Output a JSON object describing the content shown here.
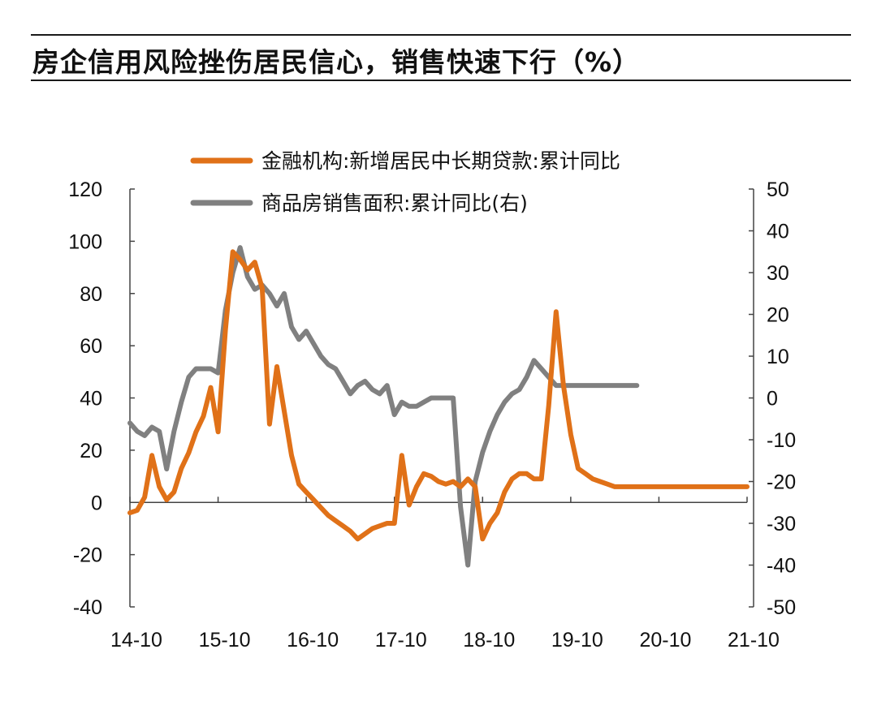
{
  "page": {
    "title": "房企信用风险挫伤居民信心，销售快速下行（%）"
  },
  "colors": {
    "orange": "#E07118",
    "gray": "#808080",
    "axis": "#444444"
  },
  "chart_data": {
    "type": "line",
    "title": "房企信用风险挫伤居民信心，销售快速下行（%）",
    "legend_position": "top-center",
    "x_ticks": [
      "14-10",
      "15-10",
      "16-10",
      "17-10",
      "18-10",
      "19-10",
      "20-10",
      "21-10"
    ],
    "x_range": [
      0,
      84
    ],
    "y_left": {
      "ticks": [
        120,
        100,
        80,
        60,
        40,
        20,
        0,
        -20,
        -40
      ],
      "range": [
        -40,
        120
      ]
    },
    "y_right": {
      "ticks": [
        50,
        40,
        30,
        20,
        10,
        0,
        -10,
        -20,
        -30,
        -40,
        -50
      ],
      "range": [
        -50,
        50
      ]
    },
    "series": [
      {
        "name": "金融机构:新增居民中长期贷款:累计同比",
        "axis": "left",
        "color": "#E07118",
        "x": [
          0,
          1,
          2,
          3,
          4,
          5,
          6,
          7,
          8,
          9,
          10,
          11,
          12,
          13,
          14,
          15,
          16,
          17,
          18,
          19,
          20,
          21,
          22,
          23,
          24,
          25,
          26,
          27,
          28,
          29,
          30,
          31,
          32,
          33,
          34,
          35,
          36,
          37,
          38,
          39,
          40,
          41,
          42,
          43,
          44,
          45,
          46,
          47,
          48,
          49,
          50,
          51,
          52,
          53,
          54,
          55,
          56,
          57,
          58,
          59,
          60,
          61,
          62,
          63,
          64,
          65,
          66,
          67,
          68,
          69,
          70,
          71,
          72,
          73,
          74,
          75,
          76,
          77,
          78,
          79,
          80,
          81,
          82,
          83,
          84
        ],
        "values": [
          -4,
          -3,
          2,
          18,
          6,
          1,
          4,
          13,
          19,
          27,
          33,
          44,
          27,
          66,
          96,
          93,
          89,
          92,
          82,
          30,
          52,
          35,
          18,
          7,
          4,
          1,
          -2,
          -5,
          -7,
          -9,
          -11,
          -14,
          -12,
          -10,
          -9,
          -8,
          -8,
          18,
          -1,
          6,
          11,
          10,
          8,
          7,
          8,
          6,
          9,
          6,
          -14,
          -8,
          -4,
          4,
          9,
          11,
          11,
          9,
          9,
          37,
          73,
          45,
          26,
          13,
          11,
          9,
          8,
          7,
          6,
          6,
          6,
          6,
          6,
          6,
          6,
          6,
          6,
          6,
          6,
          6,
          6,
          6,
          6,
          6,
          6,
          6,
          6
        ]
      },
      {
        "name": "商品房销售面积:累计同比(右)",
        "axis": "right",
        "color": "#808080",
        "x": [
          0,
          1,
          2,
          3,
          4,
          5,
          6,
          7,
          8,
          9,
          10,
          11,
          12,
          13,
          14,
          15,
          16,
          17,
          18,
          19,
          20,
          21,
          22,
          23,
          24,
          25,
          26,
          27,
          28,
          29,
          30,
          31,
          32,
          33,
          34,
          35,
          36,
          37,
          38,
          39,
          40,
          41,
          42,
          43,
          44,
          45,
          46,
          47,
          48,
          49,
          50,
          51,
          52,
          53,
          54,
          55,
          56,
          57,
          58,
          59,
          60,
          61,
          62,
          63,
          64,
          65,
          66,
          67,
          68,
          69
        ],
        "values": [
          -6,
          -8,
          -9,
          -7,
          -8,
          -17,
          -8,
          -1,
          5,
          7,
          7,
          7,
          6,
          21,
          30,
          36,
          29,
          26,
          27,
          25,
          22,
          25,
          17,
          14,
          16,
          13,
          10,
          8,
          7,
          4,
          1,
          3,
          4,
          2,
          1,
          3,
          -4,
          -1,
          -2,
          -2,
          -1,
          0,
          0,
          0,
          0,
          -26,
          -40,
          -20,
          -13,
          -8,
          -4,
          -1,
          1,
          2,
          5,
          9,
          7,
          5,
          3,
          3,
          3,
          3,
          3,
          3,
          3,
          3,
          3,
          3,
          3,
          3
        ]
      }
    ]
  }
}
